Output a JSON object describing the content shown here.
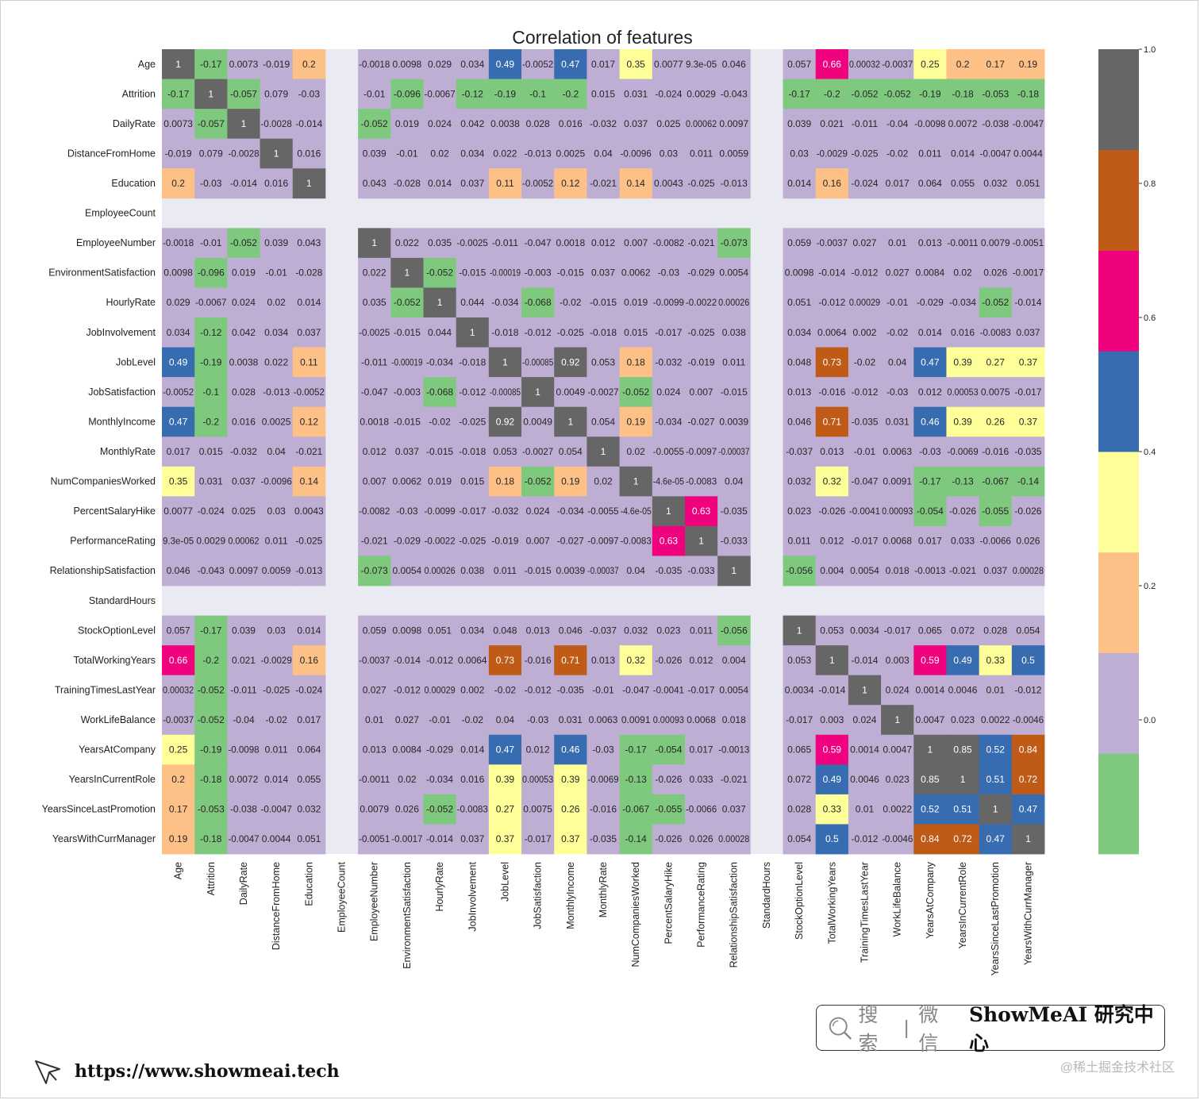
{
  "chart_data": {
    "type": "heatmap",
    "title": "Correlation of features",
    "features": [
      "Age",
      "Attrition",
      "DailyRate",
      "DistanceFromHome",
      "Education",
      "EmployeeCount",
      "EmployeeNumber",
      "EnvironmentSatisfaction",
      "HourlyRate",
      "JobInvolvement",
      "JobLevel",
      "JobSatisfaction",
      "MonthlyIncome",
      "MonthlyRate",
      "NumCompaniesWorked",
      "PercentSalaryHike",
      "PerformanceRating",
      "RelationshipSatisfaction",
      "StandardHours",
      "StockOptionLevel",
      "TotalWorkingYears",
      "TrainingTimesLastYear",
      "WorkLifeBalance",
      "YearsAtCompany",
      "YearsInCurrentRole",
      "YearsSinceLastPromotion",
      "YearsWithCurrManager"
    ],
    "matrix": [
      [
        "1",
        "-0.17",
        "0.0073",
        "-0.019",
        "0.2",
        null,
        "-0.0018",
        "0.0098",
        "0.029",
        "0.034",
        "0.49",
        "-0.0052",
        "0.47",
        "0.017",
        "0.35",
        "0.0077",
        "9.3e-05",
        "0.046",
        null,
        "0.057",
        "0.66",
        "0.00032",
        "-0.0037",
        "0.25",
        "0.2",
        "0.17",
        "0.19"
      ],
      [
        "-0.17",
        "1",
        "-0.057",
        "0.079",
        "-0.03",
        null,
        "-0.01",
        "-0.096",
        "-0.0067",
        "-0.12",
        "-0.19",
        "-0.1",
        "-0.2",
        "0.015",
        "0.031",
        "-0.024",
        "0.0029",
        "-0.043",
        null,
        "-0.17",
        "-0.2",
        "-0.052",
        "-0.052",
        "-0.19",
        "-0.18",
        "-0.053",
        "-0.18"
      ],
      [
        "0.0073",
        "-0.057",
        "1",
        "-0.0028",
        "-0.014",
        null,
        "-0.052",
        "0.019",
        "0.024",
        "0.042",
        "0.0038",
        "0.028",
        "0.016",
        "-0.032",
        "0.037",
        "0.025",
        "0.00062",
        "0.0097",
        null,
        "0.039",
        "0.021",
        "-0.011",
        "-0.04",
        "-0.0098",
        "0.0072",
        "-0.038",
        "-0.0047"
      ],
      [
        "-0.019",
        "0.079",
        "-0.0028",
        "1",
        "0.016",
        null,
        "0.039",
        "-0.01",
        "0.02",
        "0.034",
        "0.022",
        "-0.013",
        "0.0025",
        "0.04",
        "-0.0096",
        "0.03",
        "0.011",
        "0.0059",
        null,
        "0.03",
        "-0.0029",
        "-0.025",
        "-0.02",
        "0.011",
        "0.014",
        "-0.0047",
        "0.0044"
      ],
      [
        "0.2",
        "-0.03",
        "-0.014",
        "0.016",
        "1",
        null,
        "0.043",
        "-0.028",
        "0.014",
        "0.037",
        "0.11",
        "-0.0052",
        "0.12",
        "-0.021",
        "0.14",
        "0.0043",
        "-0.025",
        "-0.013",
        null,
        "0.014",
        "0.16",
        "-0.024",
        "0.017",
        "0.064",
        "0.055",
        "0.032",
        "0.051"
      ],
      [
        null,
        null,
        null,
        null,
        null,
        null,
        null,
        null,
        null,
        null,
        null,
        null,
        null,
        null,
        null,
        null,
        null,
        null,
        null,
        null,
        null,
        null,
        null,
        null,
        null,
        null,
        null
      ],
      [
        "-0.0018",
        "-0.01",
        "-0.052",
        "0.039",
        "0.043",
        null,
        "1",
        "0.022",
        "0.035",
        "-0.0025",
        "-0.011",
        "-0.047",
        "0.0018",
        "0.012",
        "0.007",
        "-0.0082",
        "-0.021",
        "-0.073",
        null,
        "0.059",
        "-0.0037",
        "0.027",
        "0.01",
        "0.013",
        "-0.0011",
        "0.0079",
        "-0.0051"
      ],
      [
        "0.0098",
        "-0.096",
        "0.019",
        "-0.01",
        "-0.028",
        null,
        "0.022",
        "1",
        "-0.052",
        "-0.015",
        "-0.00019",
        "-0.003",
        "-0.015",
        "0.037",
        "0.0062",
        "-0.03",
        "-0.029",
        "0.0054",
        null,
        "0.0098",
        "-0.014",
        "-0.012",
        "0.027",
        "0.0084",
        "0.02",
        "0.026",
        "-0.0017"
      ],
      [
        "0.029",
        "-0.0067",
        "0.024",
        "0.02",
        "0.014",
        null,
        "0.035",
        "-0.052",
        "1",
        "0.044",
        "-0.034",
        "-0.068",
        "-0.02",
        "-0.015",
        "0.019",
        "-0.0099",
        "-0.0022",
        "0.00026",
        null,
        "0.051",
        "-0.012",
        "0.00029",
        "-0.01",
        "-0.029",
        "-0.034",
        "-0.052",
        "-0.014"
      ],
      [
        "0.034",
        "-0.12",
        "0.042",
        "0.034",
        "0.037",
        null,
        "-0.0025",
        "-0.015",
        "0.044",
        "1",
        "-0.018",
        "-0.012",
        "-0.025",
        "-0.018",
        "0.015",
        "-0.017",
        "-0.025",
        "0.038",
        null,
        "0.034",
        "0.0064",
        "0.002",
        "-0.02",
        "0.014",
        "0.016",
        "-0.0083",
        "0.037"
      ],
      [
        "0.49",
        "-0.19",
        "0.0038",
        "0.022",
        "0.11",
        null,
        "-0.011",
        "-0.00019",
        "-0.034",
        "-0.018",
        "1",
        "-0.00085",
        "0.92",
        "0.053",
        "0.18",
        "-0.032",
        "-0.019",
        "0.011",
        null,
        "0.048",
        "0.73",
        "-0.02",
        "0.04",
        "0.47",
        "0.39",
        "0.27",
        "0.37"
      ],
      [
        "-0.0052",
        "-0.1",
        "0.028",
        "-0.013",
        "-0.0052",
        null,
        "-0.047",
        "-0.003",
        "-0.068",
        "-0.012",
        "-0.00085",
        "1",
        "0.0049",
        "-0.0027",
        "-0.052",
        "0.024",
        "0.007",
        "-0.015",
        null,
        "0.013",
        "-0.016",
        "-0.012",
        "-0.03",
        "0.012",
        "0.00053",
        "0.0075",
        "-0.017"
      ],
      [
        "0.47",
        "-0.2",
        "0.016",
        "0.0025",
        "0.12",
        null,
        "0.0018",
        "-0.015",
        "-0.02",
        "-0.025",
        "0.92",
        "0.0049",
        "1",
        "0.054",
        "0.19",
        "-0.034",
        "-0.027",
        "0.0039",
        null,
        "0.046",
        "0.71",
        "-0.035",
        "0.031",
        "0.46",
        "0.39",
        "0.26",
        "0.37"
      ],
      [
        "0.017",
        "0.015",
        "-0.032",
        "0.04",
        "-0.021",
        null,
        "0.012",
        "0.037",
        "-0.015",
        "-0.018",
        "0.053",
        "-0.0027",
        "0.054",
        "1",
        "0.02",
        "-0.0055",
        "-0.0097",
        "-0.00037",
        null,
        "-0.037",
        "0.013",
        "-0.01",
        "0.0063",
        "-0.03",
        "-0.0069",
        "-0.016",
        "-0.035"
      ],
      [
        "0.35",
        "0.031",
        "0.037",
        "-0.0096",
        "0.14",
        null,
        "0.007",
        "0.0062",
        "0.019",
        "0.015",
        "0.18",
        "-0.052",
        "0.19",
        "0.02",
        "1",
        "-4.6e-05",
        "-0.0083",
        "0.04",
        null,
        "0.032",
        "0.32",
        "-0.047",
        "0.0091",
        "-0.17",
        "-0.13",
        "-0.067",
        "-0.14"
      ],
      [
        "0.0077",
        "-0.024",
        "0.025",
        "0.03",
        "0.0043",
        null,
        "-0.0082",
        "-0.03",
        "-0.0099",
        "-0.017",
        "-0.032",
        "0.024",
        "-0.034",
        "-0.0055",
        "-4.6e-05",
        "1",
        "0.63",
        "-0.035",
        null,
        "0.023",
        "-0.026",
        "-0.0041",
        "0.00093",
        "-0.054",
        "-0.026",
        "-0.055",
        "-0.026"
      ],
      [
        "9.3e-05",
        "0.0029",
        "0.00062",
        "0.011",
        "-0.025",
        null,
        "-0.021",
        "-0.029",
        "-0.0022",
        "-0.025",
        "-0.019",
        "0.007",
        "-0.027",
        "-0.0097",
        "-0.0083",
        "0.63",
        "1",
        "-0.033",
        null,
        "0.011",
        "0.012",
        "-0.017",
        "0.0068",
        "0.017",
        "0.033",
        "-0.0066",
        "0.026"
      ],
      [
        "0.046",
        "-0.043",
        "0.0097",
        "0.0059",
        "-0.013",
        null,
        "-0.073",
        "0.0054",
        "0.00026",
        "0.038",
        "0.011",
        "-0.015",
        "0.0039",
        "-0.00037",
        "0.04",
        "-0.035",
        "-0.033",
        "1",
        null,
        "-0.056",
        "0.004",
        "0.0054",
        "0.018",
        "-0.0013",
        "-0.021",
        "0.037",
        "0.00028"
      ],
      [
        null,
        null,
        null,
        null,
        null,
        null,
        null,
        null,
        null,
        null,
        null,
        null,
        null,
        null,
        null,
        null,
        null,
        null,
        null,
        null,
        null,
        null,
        null,
        null,
        null,
        null,
        null
      ],
      [
        "0.057",
        "-0.17",
        "0.039",
        "0.03",
        "0.014",
        null,
        "0.059",
        "0.0098",
        "0.051",
        "0.034",
        "0.048",
        "0.013",
        "0.046",
        "-0.037",
        "0.032",
        "0.023",
        "0.011",
        "-0.056",
        null,
        "1",
        "0.053",
        "0.0034",
        "-0.017",
        "0.065",
        "0.072",
        "0.028",
        "0.054"
      ],
      [
        "0.66",
        "-0.2",
        "0.021",
        "-0.0029",
        "0.16",
        null,
        "-0.0037",
        "-0.014",
        "-0.012",
        "0.0064",
        "0.73",
        "-0.016",
        "0.71",
        "0.013",
        "0.32",
        "-0.026",
        "0.012",
        "0.004",
        null,
        "0.053",
        "1",
        "-0.014",
        "0.003",
        "0.59",
        "0.49",
        "0.33",
        "0.5"
      ],
      [
        "0.00032",
        "-0.052",
        "-0.011",
        "-0.025",
        "-0.024",
        null,
        "0.027",
        "-0.012",
        "0.00029",
        "0.002",
        "-0.02",
        "-0.012",
        "-0.035",
        "-0.01",
        "-0.047",
        "-0.0041",
        "-0.017",
        "0.0054",
        null,
        "0.0034",
        "-0.014",
        "1",
        "0.024",
        "0.0014",
        "0.0046",
        "0.01",
        "-0.012"
      ],
      [
        "-0.0037",
        "-0.052",
        "-0.04",
        "-0.02",
        "0.017",
        null,
        "0.01",
        "0.027",
        "-0.01",
        "-0.02",
        "0.04",
        "-0.03",
        "0.031",
        "0.0063",
        "0.0091",
        "0.00093",
        "0.0068",
        "0.018",
        null,
        "-0.017",
        "0.003",
        "0.024",
        "1",
        "0.0047",
        "0.023",
        "0.0022",
        "-0.0046"
      ],
      [
        "0.25",
        "-0.19",
        "-0.0098",
        "0.011",
        "0.064",
        null,
        "0.013",
        "0.0084",
        "-0.029",
        "0.014",
        "0.47",
        "0.012",
        "0.46",
        "-0.03",
        "-0.17",
        "-0.054",
        "0.017",
        "-0.0013",
        null,
        "0.065",
        "0.59",
        "0.0014",
        "0.0047",
        "1",
        "0.85",
        "0.52",
        "0.84"
      ],
      [
        "0.2",
        "-0.18",
        "0.0072",
        "0.014",
        "0.055",
        null,
        "-0.0011",
        "0.02",
        "-0.034",
        "0.016",
        "0.39",
        "0.00053",
        "0.39",
        "-0.0069",
        "-0.13",
        "-0.026",
        "0.033",
        "-0.021",
        null,
        "0.072",
        "0.49",
        "0.0046",
        "0.023",
        "0.85",
        "1",
        "0.51",
        "0.72"
      ],
      [
        "0.17",
        "-0.053",
        "-0.038",
        "-0.0047",
        "0.032",
        null,
        "0.0079",
        "0.026",
        "-0.052",
        "-0.0083",
        "0.27",
        "0.0075",
        "0.26",
        "-0.016",
        "-0.067",
        "-0.055",
        "-0.0066",
        "0.037",
        null,
        "0.028",
        "0.33",
        "0.01",
        "0.0022",
        "0.52",
        "0.51",
        "1",
        "0.47"
      ],
      [
        "0.19",
        "-0.18",
        "-0.0047",
        "0.0044",
        "0.051",
        null,
        "-0.0051",
        "-0.0017",
        "-0.014",
        "0.037",
        "0.37",
        "-0.017",
        "0.37",
        "-0.035",
        "-0.14",
        "-0.026",
        "0.026",
        "0.00028",
        null,
        "0.054",
        "0.5",
        "-0.012",
        "-0.0046",
        "0.84",
        "0.72",
        "0.47",
        "1"
      ]
    ],
    "colorbar": {
      "ticks": [
        "1.0",
        "0.8",
        "0.6",
        "0.4",
        "0.2",
        "0.0"
      ],
      "range": [
        -0.2,
        1.0
      ],
      "colors": [
        "#7fc97f",
        "#beaed4",
        "#fdc086",
        "#ffff99",
        "#386cb0",
        "#f0027f",
        "#bf5b17",
        "#666666"
      ]
    }
  },
  "footer": {
    "search_word": "搜索",
    "separator": "|",
    "platform": "微信",
    "brand": "ShowMeAI 研究中心",
    "url": "https://www.showmeai.tech",
    "watermark": "@稀土掘金技术社区"
  },
  "colors": {
    "missing_bg": "#eaeaf2",
    "light_text": "#ffffff",
    "dark_text": "#262626"
  },
  "icons": [
    "search-icon",
    "cursor-pointer-icon"
  ]
}
